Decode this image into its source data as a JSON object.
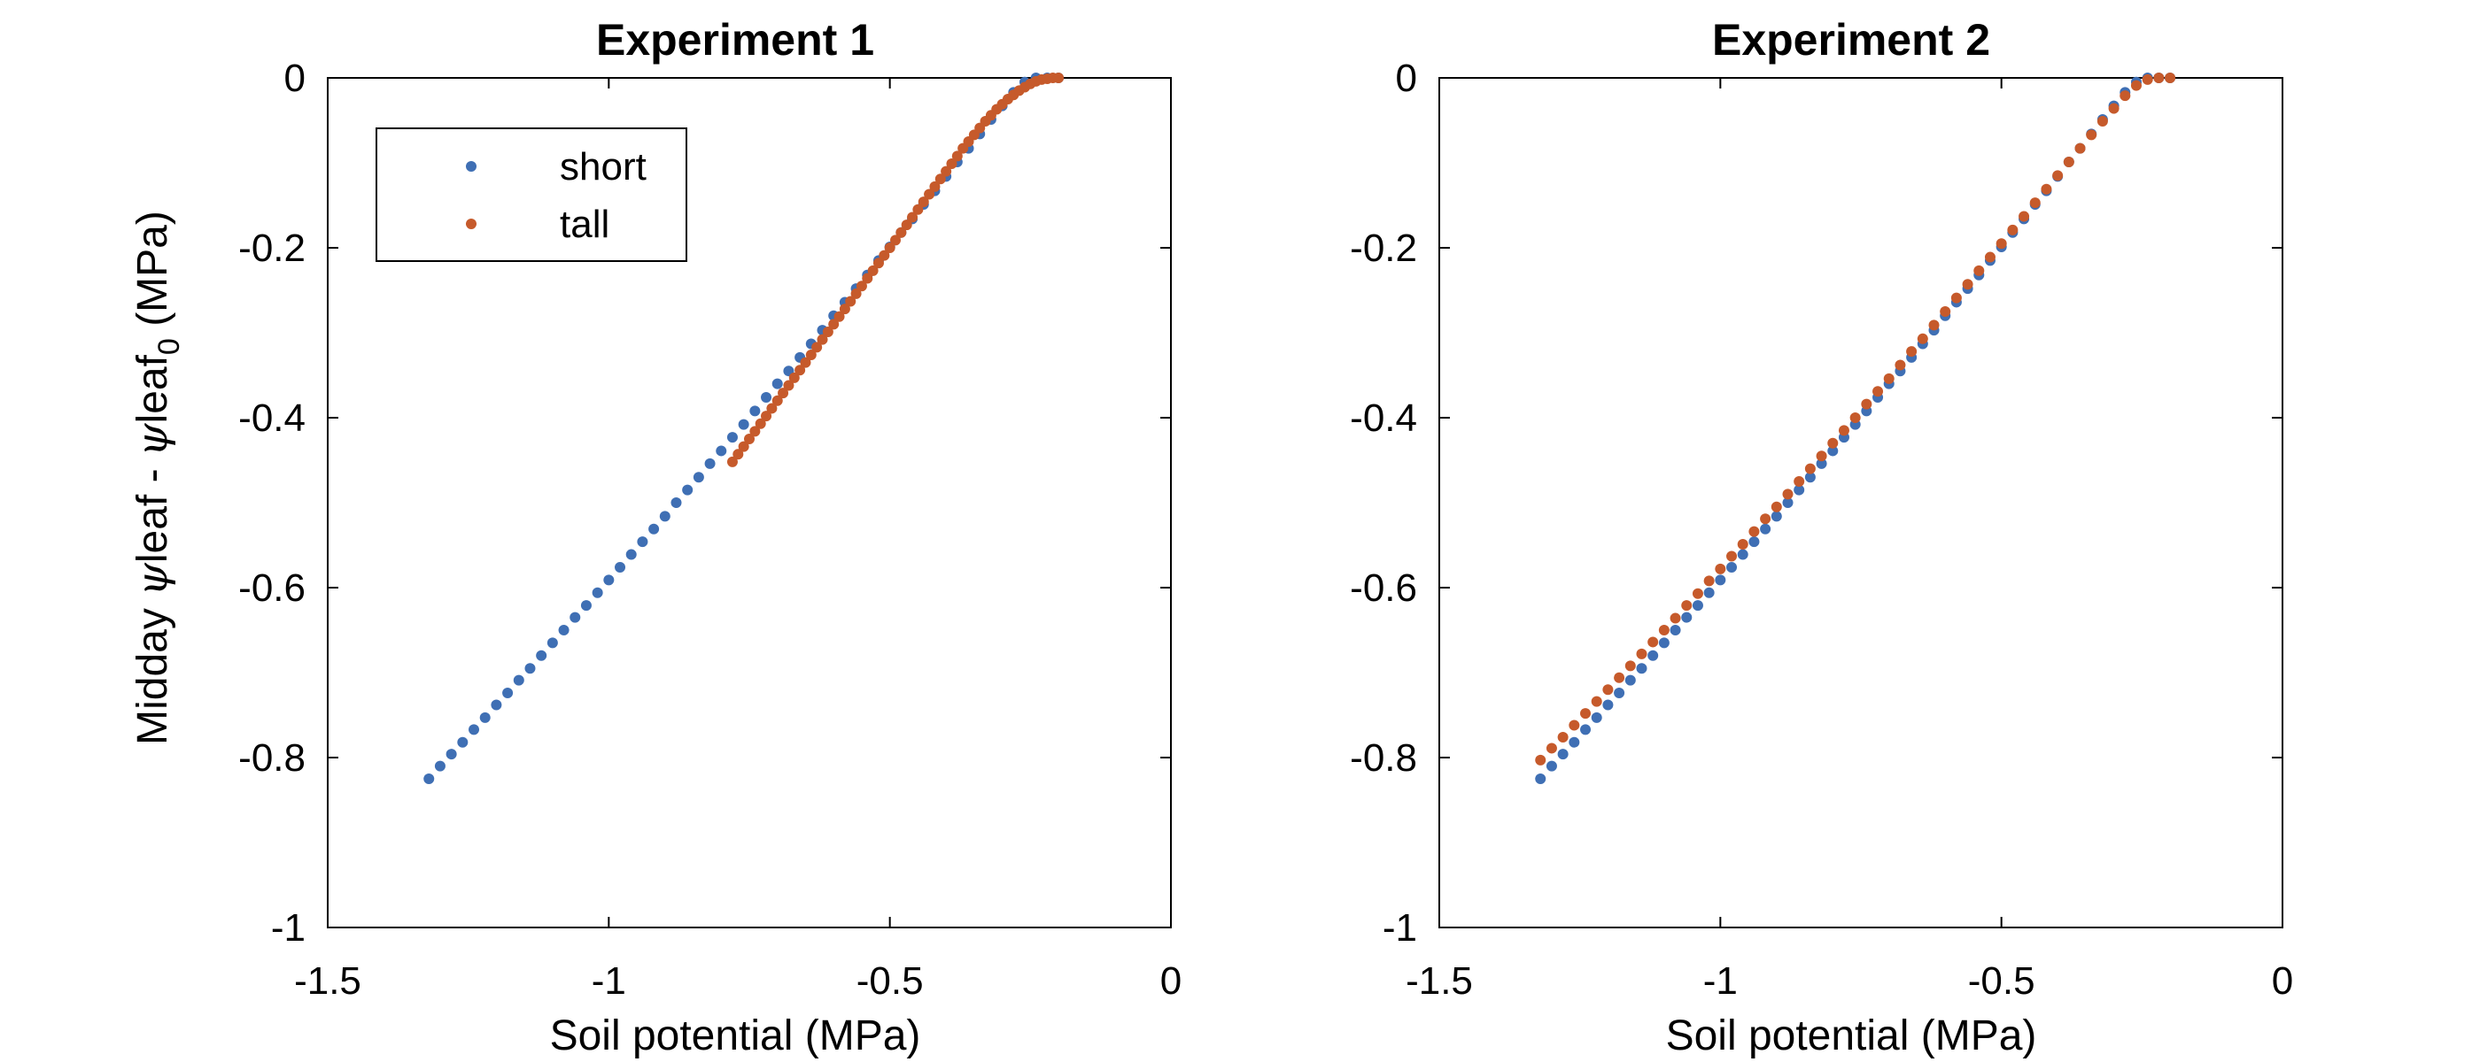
{
  "colors": {
    "short": "#3f6fb4",
    "tall": "#c65a2b",
    "axis": "#000000",
    "background": "#ffffff"
  },
  "shared": {
    "ylabel_prefix": "Midday ",
    "ylabel_psi1": "ψ",
    "ylabel_mid": "leaf - ",
    "ylabel_psi2": "ψ",
    "ylabel_leaf": "leaf",
    "ylabel_sub": "0",
    "ylabel_suffix": " (MPa)"
  },
  "legend": {
    "placement": "top-left",
    "items": [
      {
        "label": "short",
        "color": "#3f6fb4"
      },
      {
        "label": "tall",
        "color": "#c65a2b"
      }
    ]
  },
  "chart_data": [
    {
      "type": "scatter",
      "title": "Experiment 1",
      "xlabel": "Soil potential (MPa)",
      "ylabel": "Midday ψleaf - ψleaf0 (MPa)",
      "xlim": [
        -1.5,
        0
      ],
      "ylim": [
        -1,
        0
      ],
      "xticks": [
        "-1.5",
        "-1",
        "-0.5",
        "0"
      ],
      "yticks": [
        "-1",
        "-0.8",
        "-0.6",
        "-0.4",
        "-0.2",
        "0"
      ],
      "grid": false,
      "legend": "top-left",
      "series": [
        {
          "name": "short",
          "x": [
            -1.32,
            -1.3,
            -1.28,
            -1.26,
            -1.24,
            -1.22,
            -1.2,
            -1.18,
            -1.16,
            -1.14,
            -1.12,
            -1.1,
            -1.08,
            -1.06,
            -1.04,
            -1.02,
            -1.0,
            -0.98,
            -0.96,
            -0.94,
            -0.92,
            -0.9,
            -0.88,
            -0.86,
            -0.84,
            -0.82,
            -0.8,
            -0.78,
            -0.76,
            -0.74,
            -0.72,
            -0.7,
            -0.68,
            -0.66,
            -0.64,
            -0.62,
            -0.6,
            -0.58,
            -0.56,
            -0.54,
            -0.52,
            -0.5,
            -0.48,
            -0.46,
            -0.44,
            -0.42,
            -0.4,
            -0.38,
            -0.36,
            -0.34,
            -0.32,
            -0.3,
            -0.28,
            -0.26,
            -0.24,
            -0.22,
            -0.2
          ],
          "y": [
            -0.825,
            -0.81,
            -0.796,
            -0.782,
            -0.767,
            -0.753,
            -0.738,
            -0.724,
            -0.709,
            -0.695,
            -0.68,
            -0.665,
            -0.65,
            -0.635,
            -0.621,
            -0.606,
            -0.591,
            -0.576,
            -0.561,
            -0.546,
            -0.531,
            -0.516,
            -0.5,
            -0.485,
            -0.47,
            -0.454,
            -0.439,
            -0.423,
            -0.408,
            -0.392,
            -0.376,
            -0.36,
            -0.345,
            -0.329,
            -0.313,
            -0.297,
            -0.28,
            -0.264,
            -0.248,
            -0.232,
            -0.215,
            -0.199,
            -0.182,
            -0.166,
            -0.149,
            -0.133,
            -0.116,
            -0.099,
            -0.083,
            -0.066,
            -0.049,
            -0.033,
            -0.017,
            -0.005,
            0.0,
            0.0,
            0.0
          ]
        },
        {
          "name": "tall",
          "x": [
            -0.78,
            -0.77,
            -0.76,
            -0.75,
            -0.74,
            -0.73,
            -0.72,
            -0.71,
            -0.7,
            -0.69,
            -0.68,
            -0.67,
            -0.66,
            -0.65,
            -0.64,
            -0.63,
            -0.62,
            -0.61,
            -0.6,
            -0.59,
            -0.58,
            -0.57,
            -0.56,
            -0.55,
            -0.54,
            -0.53,
            -0.52,
            -0.51,
            -0.5,
            -0.49,
            -0.48,
            -0.47,
            -0.46,
            -0.45,
            -0.44,
            -0.43,
            -0.42,
            -0.41,
            -0.4,
            -0.39,
            -0.38,
            -0.37,
            -0.36,
            -0.35,
            -0.34,
            -0.33,
            -0.32,
            -0.31,
            -0.3,
            -0.29,
            -0.28,
            -0.27,
            -0.26,
            -0.25,
            -0.24,
            -0.23,
            -0.22,
            -0.21,
            -0.2
          ],
          "y": [
            -0.452,
            -0.443,
            -0.434,
            -0.425,
            -0.416,
            -0.407,
            -0.398,
            -0.389,
            -0.38,
            -0.371,
            -0.362,
            -0.353,
            -0.344,
            -0.335,
            -0.326,
            -0.317,
            -0.308,
            -0.299,
            -0.29,
            -0.281,
            -0.272,
            -0.263,
            -0.254,
            -0.245,
            -0.236,
            -0.227,
            -0.218,
            -0.209,
            -0.2,
            -0.191,
            -0.182,
            -0.173,
            -0.164,
            -0.155,
            -0.146,
            -0.137,
            -0.128,
            -0.119,
            -0.11,
            -0.101,
            -0.092,
            -0.083,
            -0.075,
            -0.067,
            -0.059,
            -0.051,
            -0.044,
            -0.037,
            -0.031,
            -0.025,
            -0.02,
            -0.015,
            -0.011,
            -0.007,
            -0.004,
            -0.002,
            -0.001,
            0.0,
            0.0
          ]
        }
      ]
    },
    {
      "type": "scatter",
      "title": "Experiment 2",
      "xlabel": "Soil potential (MPa)",
      "ylabel": "",
      "xlim": [
        -1.5,
        0
      ],
      "ylim": [
        -1,
        0
      ],
      "xticks": [
        "-1.5",
        "-1",
        "-0.5",
        "0"
      ],
      "yticks": [
        "-1",
        "-0.8",
        "-0.6",
        "-0.4",
        "-0.2",
        "0"
      ],
      "grid": false,
      "series": [
        {
          "name": "short",
          "x": [
            -1.32,
            -1.3,
            -1.28,
            -1.26,
            -1.24,
            -1.22,
            -1.2,
            -1.18,
            -1.16,
            -1.14,
            -1.12,
            -1.1,
            -1.08,
            -1.06,
            -1.04,
            -1.02,
            -1.0,
            -0.98,
            -0.96,
            -0.94,
            -0.92,
            -0.9,
            -0.88,
            -0.86,
            -0.84,
            -0.82,
            -0.8,
            -0.78,
            -0.76,
            -0.74,
            -0.72,
            -0.7,
            -0.68,
            -0.66,
            -0.64,
            -0.62,
            -0.6,
            -0.58,
            -0.56,
            -0.54,
            -0.52,
            -0.5,
            -0.48,
            -0.46,
            -0.44,
            -0.42,
            -0.4,
            -0.38,
            -0.36,
            -0.34,
            -0.32,
            -0.3,
            -0.28,
            -0.26,
            -0.24,
            -0.22,
            -0.2
          ],
          "y": [
            -0.825,
            -0.81,
            -0.796,
            -0.782,
            -0.767,
            -0.753,
            -0.738,
            -0.724,
            -0.709,
            -0.695,
            -0.68,
            -0.665,
            -0.65,
            -0.635,
            -0.621,
            -0.606,
            -0.591,
            -0.576,
            -0.561,
            -0.546,
            -0.531,
            -0.516,
            -0.5,
            -0.485,
            -0.47,
            -0.454,
            -0.439,
            -0.423,
            -0.408,
            -0.392,
            -0.376,
            -0.36,
            -0.345,
            -0.329,
            -0.313,
            -0.297,
            -0.28,
            -0.264,
            -0.248,
            -0.232,
            -0.215,
            -0.199,
            -0.182,
            -0.166,
            -0.149,
            -0.133,
            -0.116,
            -0.099,
            -0.083,
            -0.066,
            -0.049,
            -0.033,
            -0.017,
            -0.005,
            0.0,
            0.0,
            0.0
          ]
        },
        {
          "name": "tall",
          "x": [
            -1.32,
            -1.3,
            -1.28,
            -1.26,
            -1.24,
            -1.22,
            -1.2,
            -1.18,
            -1.16,
            -1.14,
            -1.12,
            -1.1,
            -1.08,
            -1.06,
            -1.04,
            -1.02,
            -1.0,
            -0.98,
            -0.96,
            -0.94,
            -0.92,
            -0.9,
            -0.88,
            -0.86,
            -0.84,
            -0.82,
            -0.8,
            -0.78,
            -0.76,
            -0.74,
            -0.72,
            -0.7,
            -0.68,
            -0.66,
            -0.64,
            -0.62,
            -0.6,
            -0.58,
            -0.56,
            -0.54,
            -0.52,
            -0.5,
            -0.48,
            -0.46,
            -0.44,
            -0.42,
            -0.4,
            -0.38,
            -0.36,
            -0.34,
            -0.32,
            -0.3,
            -0.28,
            -0.26,
            -0.24,
            -0.22,
            -0.2
          ],
          "y": [
            -0.803,
            -0.789,
            -0.776,
            -0.762,
            -0.748,
            -0.734,
            -0.72,
            -0.706,
            -0.692,
            -0.678,
            -0.664,
            -0.65,
            -0.636,
            -0.621,
            -0.607,
            -0.592,
            -0.578,
            -0.563,
            -0.549,
            -0.534,
            -0.519,
            -0.505,
            -0.49,
            -0.475,
            -0.46,
            -0.445,
            -0.43,
            -0.415,
            -0.4,
            -0.384,
            -0.369,
            -0.354,
            -0.338,
            -0.322,
            -0.307,
            -0.291,
            -0.275,
            -0.259,
            -0.243,
            -0.227,
            -0.211,
            -0.195,
            -0.179,
            -0.163,
            -0.147,
            -0.131,
            -0.115,
            -0.099,
            -0.083,
            -0.067,
            -0.051,
            -0.036,
            -0.021,
            -0.009,
            -0.002,
            0.0,
            0.0
          ]
        }
      ]
    }
  ]
}
